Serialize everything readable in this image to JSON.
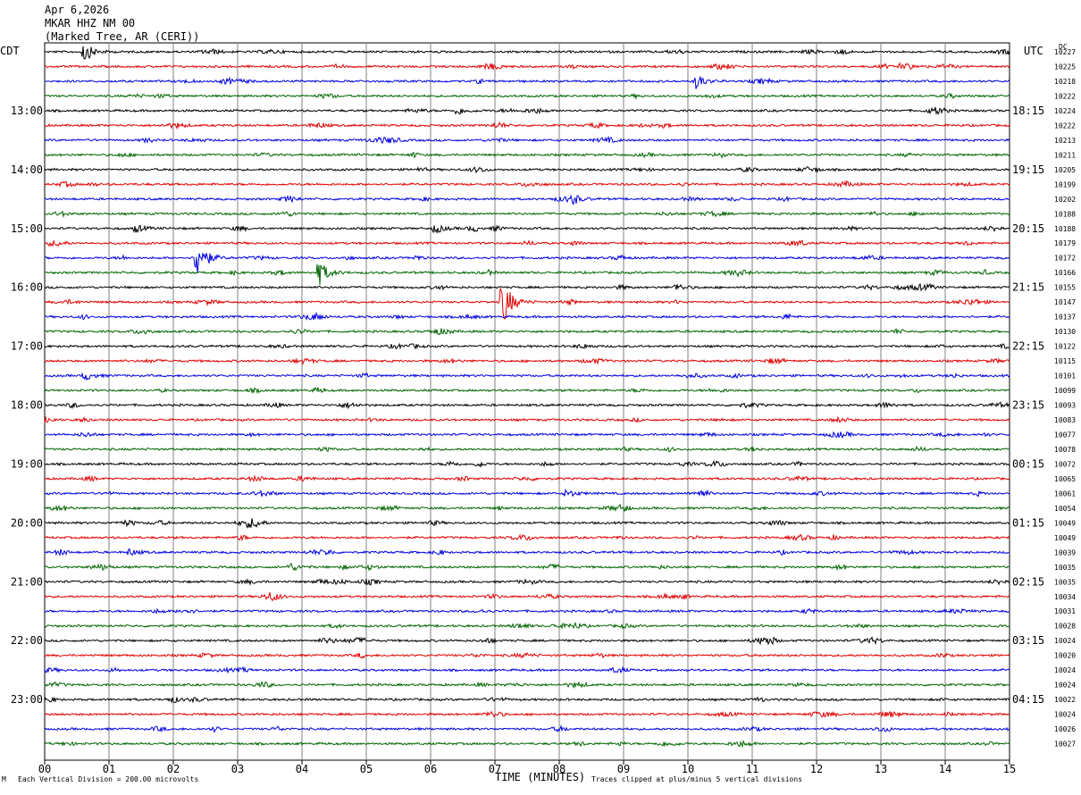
{
  "header": {
    "date": "Apr 6,2026",
    "station": "MKAR HHZ NM 00",
    "location": "(Marked Tree, AR (CERI))"
  },
  "left_zone_label": "CDT",
  "right_zone_label": "UTC",
  "dc_label": "DC",
  "footer": {
    "scale_note": "Each Vertical Division =  200.00 microvolts",
    "xlabel": "TIME (MINUTES)",
    "clip_note": "Traces clipped at plus/minus 5 vertical divisions",
    "corner_mark": "M"
  },
  "colors": {
    "black": "#000000",
    "red": "#e00000",
    "blue": "#0000e0",
    "green": "#006400",
    "grid": "#808080"
  },
  "chart_data": {
    "type": "line",
    "title": "MKAR HHZ NM 00",
    "xlabel": "TIME (MINUTES)",
    "x_ticks": [
      "00",
      "01",
      "02",
      "03",
      "04",
      "05",
      "06",
      "07",
      "08",
      "09",
      "10",
      "11",
      "12",
      "13",
      "14",
      "15"
    ],
    "xlim": [
      0,
      15
    ],
    "trace_colors": [
      "#000000",
      "#e00000",
      "#0000e0",
      "#006400"
    ],
    "left_hour_labels": [
      "13:00",
      "14:00",
      "15:00",
      "16:00",
      "17:00",
      "18:00",
      "19:00",
      "20:00",
      "21:00",
      "22:00",
      "23:00"
    ],
    "right_hour_labels": [
      "18:15",
      "19:15",
      "20:15",
      "21:15",
      "22:15",
      "23:15",
      "00:15",
      "01:15",
      "02:15",
      "03:15",
      "04:15"
    ],
    "first_labeled_trace_index": 4,
    "dc_offsets": [
      "10227",
      "10225",
      "10218",
      "10222",
      "10224",
      "10222",
      "10213",
      "10211",
      "10205",
      "10199",
      "10202",
      "10188",
      "10188",
      "10179",
      "10172",
      "10166",
      "10155",
      "10147",
      "10137",
      "10130",
      "10122",
      "10115",
      "10101",
      "10099",
      "10093",
      "10083",
      "10077",
      "10078",
      "10072",
      "10065",
      "10061",
      "10054",
      "10049",
      "10049",
      "10039",
      "10035",
      "10035",
      "10034",
      "10031",
      "10028",
      "10024",
      "10020",
      "10024",
      "10024",
      "10022",
      "10024",
      "10026",
      "10027"
    ],
    "events": [
      {
        "trace": 1,
        "minute": 13.3,
        "amplitude": 1.6
      },
      {
        "trace": 2,
        "minute": 10.1,
        "amplitude": 2.0
      },
      {
        "trace": 0,
        "minute": 0.6,
        "amplitude": 3.0
      },
      {
        "trace": 4,
        "minute": 6.4,
        "amplitude": 1.3
      },
      {
        "trace": 10,
        "minute": 8.2,
        "amplitude": 1.3
      },
      {
        "trace": 12,
        "minute": 1.4,
        "amplitude": 1.2
      },
      {
        "trace": 12,
        "minute": 6.05,
        "amplitude": 1.5
      },
      {
        "trace": 14,
        "minute": 2.35,
        "amplitude": 7.0
      },
      {
        "trace": 15,
        "minute": 4.25,
        "amplitude": 4.0
      },
      {
        "trace": 17,
        "minute": 7.1,
        "amplitude": 8.0
      },
      {
        "trace": 16,
        "minute": 9.8,
        "amplitude": 1.2
      },
      {
        "trace": 22,
        "minute": 0.6,
        "amplitude": 1.5
      },
      {
        "trace": 30,
        "minute": 8.1,
        "amplitude": 1.3
      },
      {
        "trace": 34,
        "minute": 1.3,
        "amplitude": 1.0
      },
      {
        "trace": 35,
        "minute": 3.8,
        "amplitude": 1.3
      }
    ]
  }
}
